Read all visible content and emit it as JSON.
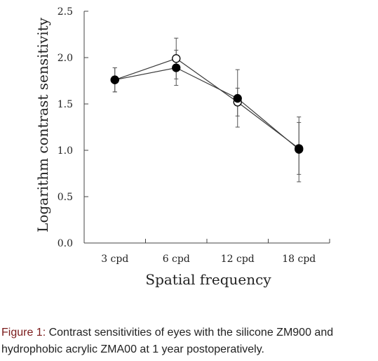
{
  "chart_data": {
    "type": "line",
    "categories": [
      "3 cpd",
      "6 cpd",
      "12 cpd",
      "18 cpd"
    ],
    "series": [
      {
        "marker": "filled",
        "values": [
          1.76,
          1.89,
          1.56,
          1.01
        ],
        "error": [
          0.13,
          0.19,
          0.31,
          0.35
        ],
        "color": "#000000"
      },
      {
        "marker": "open",
        "values": [
          1.76,
          1.99,
          1.52,
          1.02
        ],
        "error": [
          0.13,
          0.22,
          0.15,
          0.28
        ],
        "color": "#000000"
      }
    ],
    "xlabel": "Spatial frequency",
    "ylabel": "Logarithm contrast sensitivity",
    "ylim": [
      0.0,
      2.5
    ],
    "yticks": [
      "0.0",
      "0.5",
      "1.0",
      "1.5",
      "2.0",
      "2.5"
    ],
    "grid": false
  },
  "caption": {
    "label": "Figure 1:",
    "text": " Contrast sensitivities of eyes with the silicone ZM900 and hydrophobic acrylic ZMA00 at 1 year postoperatively."
  }
}
